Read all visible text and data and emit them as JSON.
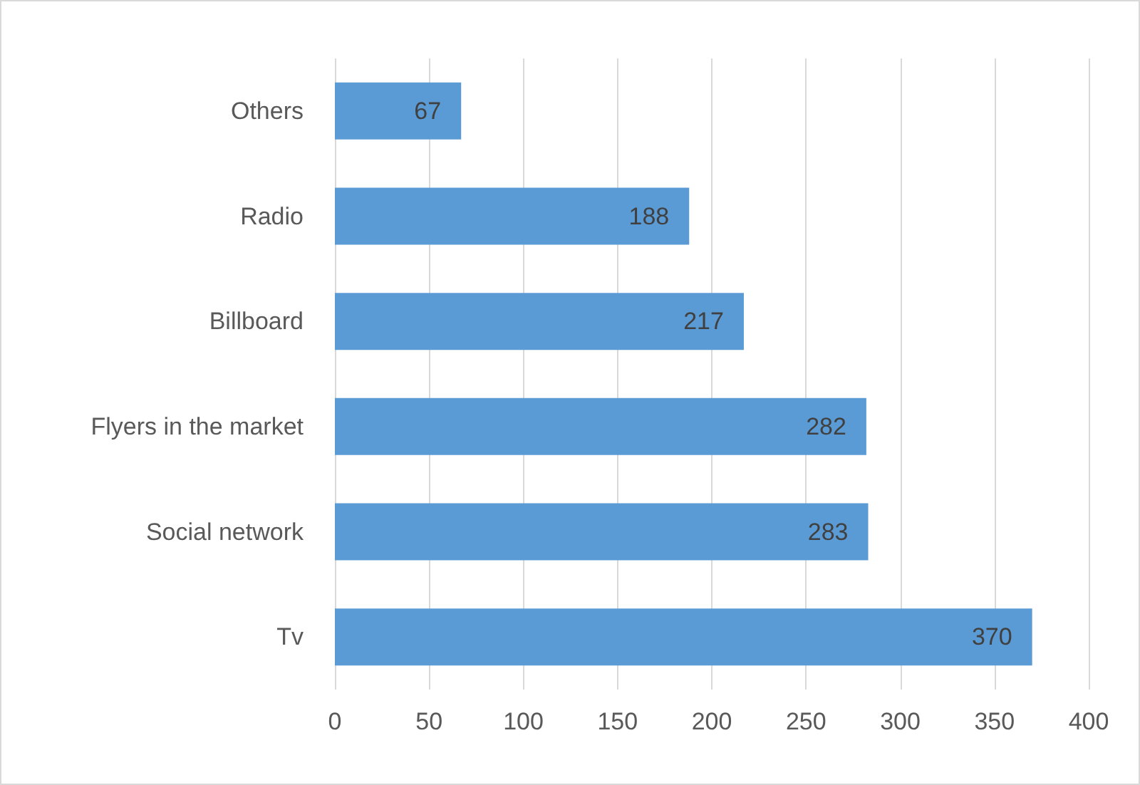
{
  "chart_data": {
    "type": "bar",
    "orientation": "horizontal",
    "categories": [
      "Others",
      "Radio",
      "Billboard",
      "Flyers in the market",
      "Social network",
      "Tv"
    ],
    "values": [
      67,
      188,
      217,
      282,
      283,
      370
    ],
    "color": "#5b9bd5",
    "xlim": [
      0,
      400
    ],
    "xticks": [
      0,
      50,
      100,
      150,
      200,
      250,
      300,
      350,
      400
    ],
    "grid": "x",
    "data_labels": true
  }
}
